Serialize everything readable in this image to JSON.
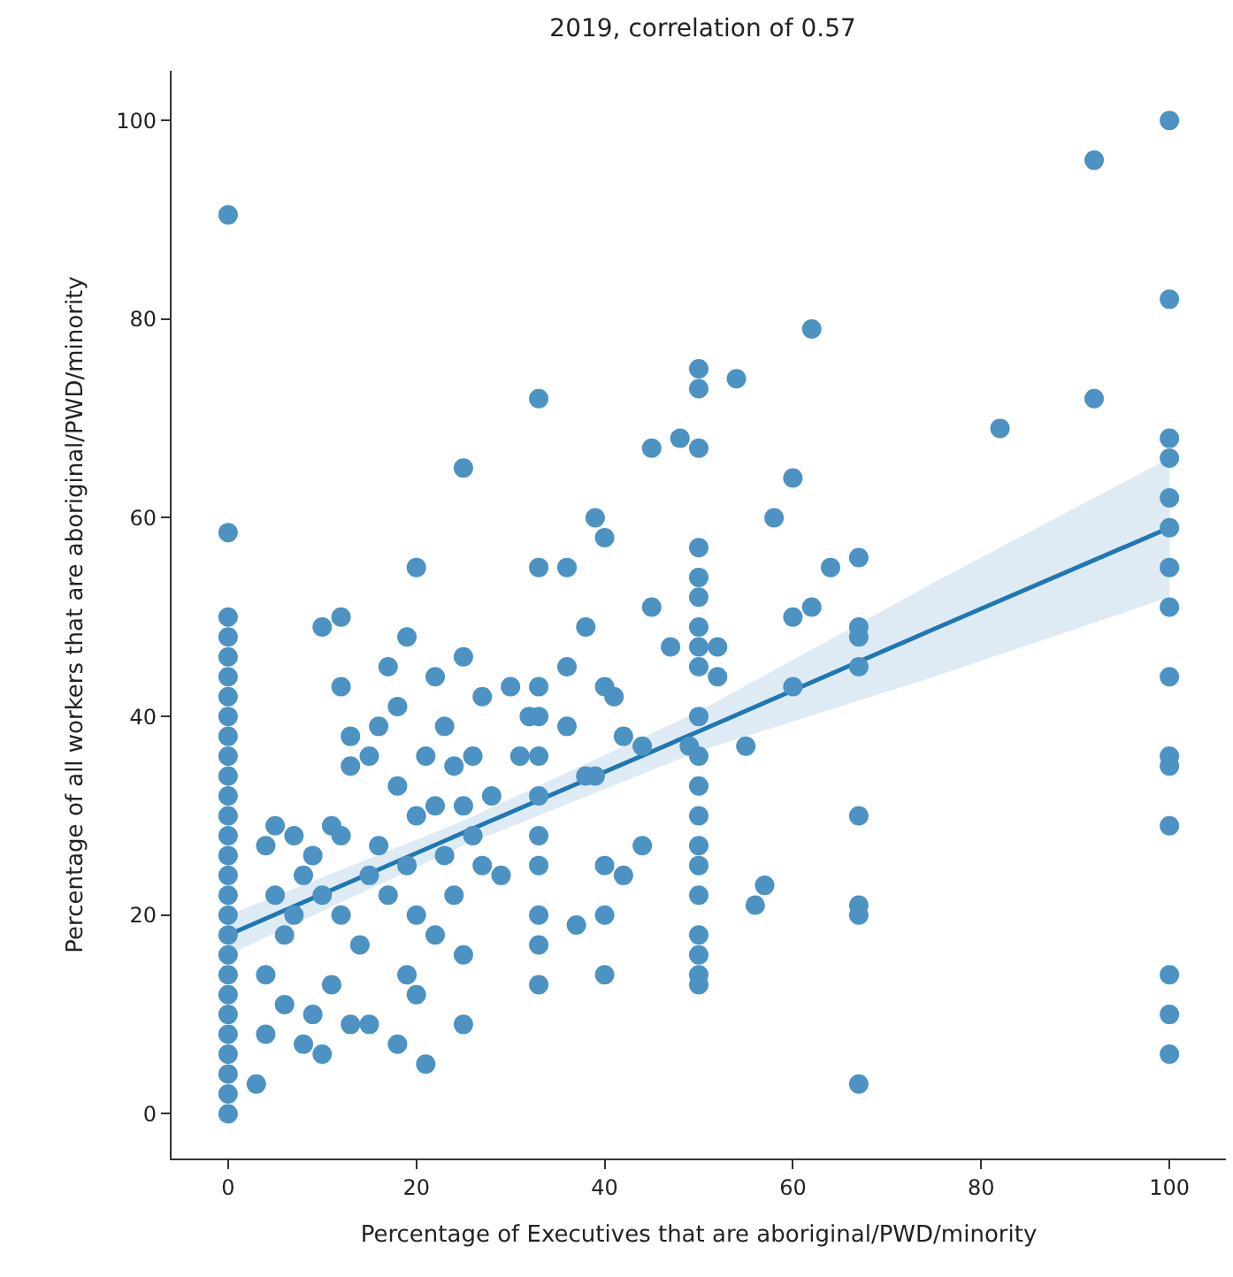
{
  "chart_data": {
    "type": "scatter",
    "title": "2019, correlation of 0.57",
    "xlabel": "Percentage of Executives that are aboriginal/PWD/minority",
    "ylabel": "Percentage of all workers that are aboriginal/PWD/minority",
    "xlim": [
      -6,
      106
    ],
    "ylim": [
      -4.5,
      105
    ],
    "xticks": [
      0,
      20,
      40,
      60,
      80,
      100
    ],
    "yticks": [
      0,
      20,
      40,
      60,
      80,
      100
    ],
    "series": [
      {
        "marker": "circle",
        "color": "#4c92c3",
        "x": [
          0,
          0,
          0,
          0,
          0,
          0,
          0,
          0,
          0,
          0,
          0,
          0,
          0,
          0,
          0,
          0,
          0,
          0,
          0,
          0,
          0,
          0,
          0,
          0,
          0,
          0,
          0,
          0,
          3,
          4,
          4,
          5,
          4,
          5,
          6,
          6,
          7,
          7,
          8,
          8,
          9,
          9,
          10,
          10,
          10,
          11,
          11,
          12,
          12,
          12,
          12,
          13,
          13,
          13,
          14,
          15,
          15,
          15,
          16,
          16,
          17,
          17,
          18,
          18,
          18,
          19,
          19,
          19,
          20,
          20,
          20,
          20,
          21,
          21,
          22,
          22,
          22,
          23,
          23,
          24,
          24,
          25,
          25,
          25,
          25,
          25,
          26,
          26,
          27,
          27,
          28,
          29,
          30,
          31,
          32,
          33,
          33,
          33,
          33,
          33,
          33,
          33,
          33,
          33,
          33,
          33,
          36,
          36,
          36,
          37,
          38,
          38,
          39,
          39,
          40,
          40,
          40,
          40,
          40,
          41,
          42,
          42,
          44,
          44,
          45,
          45,
          47,
          48,
          49,
          50,
          50,
          50,
          50,
          50,
          50,
          50,
          50,
          50,
          50,
          50,
          50,
          50,
          50,
          50,
          50,
          50,
          50,
          50,
          50,
          52,
          52,
          54,
          55,
          56,
          57,
          58,
          60,
          60,
          60,
          62,
          62,
          64,
          67,
          67,
          67,
          67,
          67,
          67,
          67,
          67,
          82,
          92,
          92,
          100,
          100,
          100,
          100,
          100,
          100,
          100,
          100,
          100,
          100,
          100,
          100,
          100,
          100,
          100
        ],
        "values": [
          0,
          2,
          4,
          6,
          8,
          10,
          12,
          14,
          16,
          18,
          20,
          22,
          24,
          26,
          28,
          30,
          32,
          34,
          36,
          38,
          40,
          42,
          44,
          46,
          48,
          50,
          58.5,
          90.5,
          3,
          8,
          14,
          22,
          27,
          29,
          11,
          18,
          28,
          20,
          7,
          24,
          26,
          10,
          22,
          6,
          49,
          29,
          13,
          28,
          50,
          43,
          20,
          38,
          35,
          9,
          17,
          24,
          9,
          36,
          39,
          27,
          45,
          22,
          33,
          41,
          7,
          48,
          25,
          14,
          55,
          30,
          20,
          12,
          36,
          5,
          31,
          18,
          44,
          39,
          26,
          35,
          22,
          65,
          46,
          31,
          16,
          9,
          28,
          36,
          42,
          25,
          32,
          24,
          43,
          36,
          40,
          72,
          55,
          43,
          40,
          36,
          32,
          28,
          25,
          20,
          17,
          13,
          55,
          45,
          39,
          19,
          34,
          49,
          60,
          34,
          58,
          43,
          25,
          20,
          14,
          42,
          38,
          24,
          27,
          37,
          51,
          67,
          47,
          68,
          37,
          75,
          73,
          67,
          57,
          54,
          52,
          49,
          47,
          45,
          40,
          36,
          33,
          30,
          27,
          25,
          22,
          18,
          16,
          14,
          13,
          47,
          44,
          74,
          37,
          21,
          23,
          60,
          64,
          50,
          43,
          79,
          51,
          55,
          56,
          49,
          48,
          45,
          30,
          21,
          20,
          3,
          69,
          96,
          72,
          100,
          82,
          68,
          66,
          62,
          59,
          55,
          51,
          44,
          36,
          35,
          29,
          14,
          10,
          6
        ]
      },
      {
        "type": "line",
        "line_style": "solid",
        "color": "#1f77b4",
        "x": [
          0,
          25,
          50,
          75,
          100
        ],
        "values": [
          18,
          28.3,
          38.5,
          48.8,
          59
        ],
        "lower": [
          16,
          27,
          36.5,
          44,
          52
        ],
        "upper": [
          20,
          29.5,
          40.5,
          53.5,
          66
        ]
      }
    ]
  }
}
